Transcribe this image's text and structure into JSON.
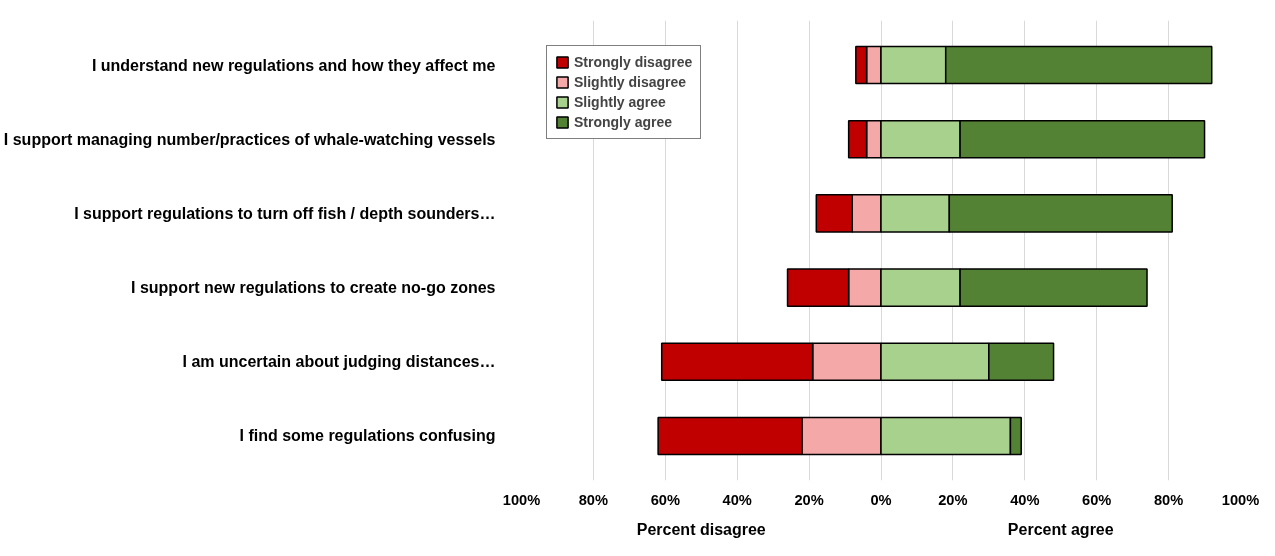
{
  "chart_data": {
    "type": "bar",
    "orientation": "horizontal",
    "stacked": true,
    "categories": [
      "I understand new regulations and how they affect me",
      "I support managing number/practices of whale-watching vessels",
      "I support regulations to turn off fish / depth sounders…",
      "I support new regulations to create no-go zones",
      "I am uncertain about judging distances…",
      "I find some regulations confusing"
    ],
    "series": [
      {
        "name": "Slightly disagree",
        "color": "#f4a9a8",
        "values": [
          -4,
          -4,
          -8,
          -9,
          -19,
          -22
        ]
      },
      {
        "name": "Strongly disagree",
        "color": "#c00000",
        "values": [
          -3,
          -5,
          -10,
          -17,
          -42,
          -40
        ]
      },
      {
        "name": "Slightly agree",
        "color": "#a9d18e",
        "values": [
          18,
          22,
          19,
          22,
          30,
          36
        ]
      },
      {
        "name": "Strongly agree",
        "color": "#548235",
        "values": [
          74,
          68,
          62,
          52,
          18,
          3
        ]
      }
    ],
    "xlim": [
      -100,
      100
    ],
    "xticks": [
      {
        "value": -100,
        "label": "100%"
      },
      {
        "value": -80,
        "label": "80%"
      },
      {
        "value": -60,
        "label": "60%"
      },
      {
        "value": -40,
        "label": "40%"
      },
      {
        "value": -20,
        "label": "20%"
      },
      {
        "value": 0,
        "label": "0%"
      },
      {
        "value": 20,
        "label": "20%"
      },
      {
        "value": 40,
        "label": "40%"
      },
      {
        "value": 60,
        "label": "60%"
      },
      {
        "value": 80,
        "label": "80%"
      },
      {
        "value": 100,
        "label": "100%"
      }
    ],
    "annotations": [
      "Percent disagree",
      "Percent agree"
    ],
    "grid": "x",
    "legend": "top left"
  }
}
